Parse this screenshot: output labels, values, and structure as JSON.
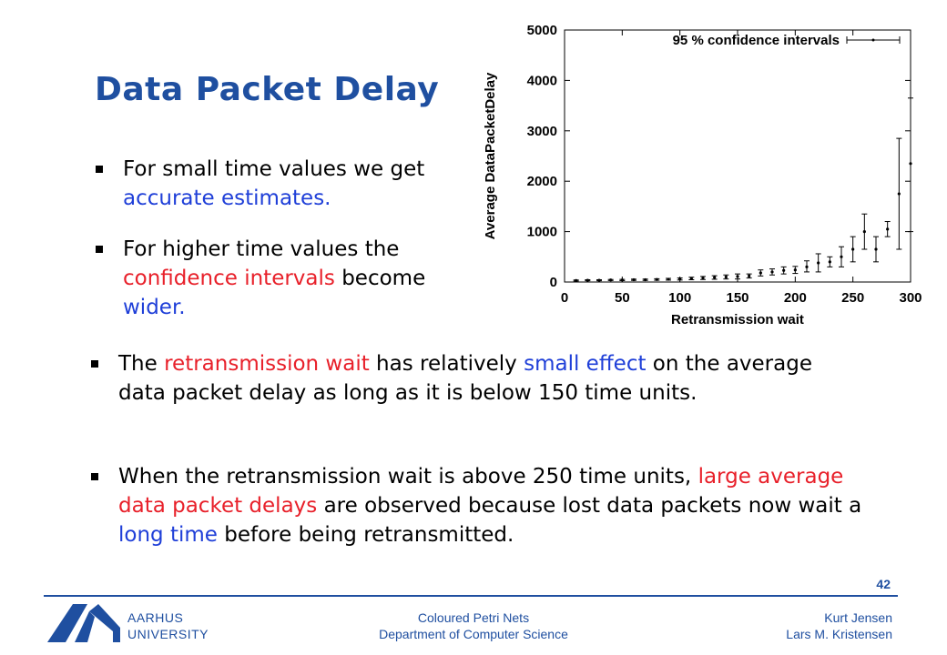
{
  "slide": {
    "title": "Data Packet Delay",
    "page_number": "42"
  },
  "bullets_top": [
    {
      "parts": [
        {
          "t": "For small time values we get ",
          "c": ""
        },
        {
          "t": "accurate estimates.",
          "c": "blue"
        }
      ]
    },
    {
      "parts": [
        {
          "t": "For higher time values the ",
          "c": ""
        },
        {
          "t": "confidence intervals",
          "c": "red"
        },
        {
          "t": " become ",
          "c": ""
        },
        {
          "t": "wider.",
          "c": "blue"
        }
      ]
    }
  ],
  "bullets_bottom": [
    {
      "parts": [
        {
          "t": "The ",
          "c": ""
        },
        {
          "t": "retransmission wait",
          "c": "red"
        },
        {
          "t": " has relatively ",
          "c": ""
        },
        {
          "t": "small effect",
          "c": "blue"
        },
        {
          "t": " on the average data packet delay as long as it is below 150 time units.",
          "c": ""
        }
      ]
    },
    {
      "parts": [
        {
          "t": "When the retransmission wait is above 250 time units, ",
          "c": ""
        },
        {
          "t": "large average data packet delays",
          "c": "red"
        },
        {
          "t": " are observed because lost data packets now wait a ",
          "c": ""
        },
        {
          "t": "long time",
          "c": "blue"
        },
        {
          "t": " before being retransmitted.",
          "c": ""
        }
      ]
    }
  ],
  "footer": {
    "university_line1": "AARHUS",
    "university_line2": "UNIVERSITY",
    "center_line1": "Coloured Petri Nets",
    "center_line2": "Department of Computer Science",
    "right_line1": "Kurt Jensen",
    "right_line2": "Lars M. Kristensen"
  },
  "colors": {
    "title_blue": "#1f4fa0",
    "emphasis_red": "#e8202a",
    "emphasis_blue": "#1f3fd8"
  },
  "chart_data": {
    "type": "scatter",
    "xlabel": "Retransmission wait",
    "ylabel": "Average DataPacketDelay",
    "xlim": [
      0,
      300
    ],
    "ylim": [
      0,
      5000
    ],
    "xticks": [
      0,
      50,
      100,
      150,
      200,
      250,
      300
    ],
    "yticks": [
      0,
      1000,
      2000,
      3000,
      4000,
      5000
    ],
    "legend": "95 % confidence intervals",
    "legend_position": "top-right",
    "series": [
      {
        "points": [
          {
            "x": 10,
            "y": 30,
            "lo": 20,
            "hi": 40
          },
          {
            "x": 20,
            "y": 35,
            "lo": 25,
            "hi": 45
          },
          {
            "x": 30,
            "y": 35,
            "lo": 25,
            "hi": 45
          },
          {
            "x": 40,
            "y": 40,
            "lo": 30,
            "hi": 50
          },
          {
            "x": 50,
            "y": 40,
            "lo": 28,
            "hi": 52
          },
          {
            "x": 60,
            "y": 45,
            "lo": 33,
            "hi": 57
          },
          {
            "x": 70,
            "y": 45,
            "lo": 32,
            "hi": 58
          },
          {
            "x": 80,
            "y": 50,
            "lo": 35,
            "hi": 65
          },
          {
            "x": 90,
            "y": 55,
            "lo": 38,
            "hi": 72
          },
          {
            "x": 100,
            "y": 60,
            "lo": 40,
            "hi": 80
          },
          {
            "x": 110,
            "y": 70,
            "lo": 45,
            "hi": 95
          },
          {
            "x": 120,
            "y": 80,
            "lo": 50,
            "hi": 110
          },
          {
            "x": 130,
            "y": 90,
            "lo": 55,
            "hi": 125
          },
          {
            "x": 140,
            "y": 100,
            "lo": 60,
            "hi": 140
          },
          {
            "x": 150,
            "y": 110,
            "lo": 60,
            "hi": 160
          },
          {
            "x": 160,
            "y": 120,
            "lo": 80,
            "hi": 160
          },
          {
            "x": 170,
            "y": 180,
            "lo": 120,
            "hi": 240
          },
          {
            "x": 180,
            "y": 200,
            "lo": 140,
            "hi": 260
          },
          {
            "x": 190,
            "y": 230,
            "lo": 160,
            "hi": 300
          },
          {
            "x": 200,
            "y": 240,
            "lo": 170,
            "hi": 310
          },
          {
            "x": 210,
            "y": 300,
            "lo": 200,
            "hi": 420
          },
          {
            "x": 220,
            "y": 380,
            "lo": 200,
            "hi": 560
          },
          {
            "x": 230,
            "y": 400,
            "lo": 300,
            "hi": 500
          },
          {
            "x": 240,
            "y": 500,
            "lo": 300,
            "hi": 700
          },
          {
            "x": 250,
            "y": 650,
            "lo": 400,
            "hi": 900
          },
          {
            "x": 260,
            "y": 1000,
            "lo": 650,
            "hi": 1350
          },
          {
            "x": 270,
            "y": 650,
            "lo": 400,
            "hi": 900
          },
          {
            "x": 280,
            "y": 1050,
            "lo": 900,
            "hi": 1200
          },
          {
            "x": 290,
            "y": 1750,
            "lo": 650,
            "hi": 2850
          },
          {
            "x": 300,
            "y": 2350,
            "lo": 1000,
            "hi": 3650
          }
        ]
      }
    ]
  }
}
